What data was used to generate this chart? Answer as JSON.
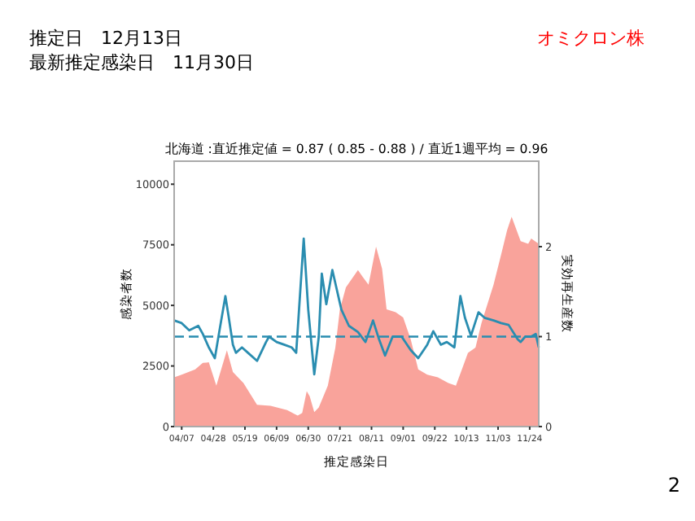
{
  "chart_data": {
    "type": "line",
    "title": "北海道 :直近推定値 = 0.87 ( 0.85 - 0.88 ) / 直近1週平均 = 0.96",
    "xlabel": "推定感染日",
    "ylabel": "感染者数",
    "y2label": "実効再生産数",
    "annotations": [
      "推定日　12月13日",
      "最新推定感染日　11月30日",
      "オミクロン株",
      "2"
    ],
    "xlim": [
      "--04-02",
      "--11-30"
    ],
    "xticks": [
      {
        "value": "--04-07",
        "label": "04/07"
      },
      {
        "value": "--04-28",
        "label": "04/28"
      },
      {
        "value": "--05-19",
        "label": "05/19"
      },
      {
        "value": "--06-09",
        "label": "06/09"
      },
      {
        "value": "--06-30",
        "label": "06/30"
      },
      {
        "value": "--07-21",
        "label": "07/21"
      },
      {
        "value": "--08-11",
        "label": "08/11"
      },
      {
        "value": "--09-01",
        "label": "09/01"
      },
      {
        "value": "--09-22",
        "label": "09/22"
      },
      {
        "value": "--10-13",
        "label": "10/13"
      },
      {
        "value": "--11-03",
        "label": "11/03"
      },
      {
        "value": "--11-24",
        "label": "11/24"
      }
    ],
    "ylim": [
      0,
      10950
    ],
    "yticks": [
      0,
      2500,
      5000,
      7500,
      10000
    ],
    "y2lim": [
      0,
      2.95
    ],
    "y2ticks": [
      0,
      1,
      2
    ],
    "grid": false,
    "ref_lines": [
      {
        "axis": "y2",
        "value": 1,
        "color": "#2a8db0",
        "line_style": "dashed"
      }
    ],
    "series": [
      {
        "type": "area",
        "color": "#f9a39b",
        "x": [
          "--04-02",
          "--04-07",
          "--04-16",
          "--04-21",
          "--04-25",
          "--04-30",
          "--05-07",
          "--05-11",
          "--05-18",
          "--05-27",
          "--06-05",
          "--06-16",
          "--06-23",
          "--06-26",
          "--06-29",
          "--07-01",
          "--07-04",
          "--07-07",
          "--07-13",
          "--07-18",
          "--07-21",
          "--07-25",
          "--08-02",
          "--08-05",
          "--08-09",
          "--08-14",
          "--08-18",
          "--08-21",
          "--08-27",
          "--09-01",
          "--09-06",
          "--09-11",
          "--09-17",
          "--09-24",
          "--10-01",
          "--10-06",
          "--10-10",
          "--10-14",
          "--10-19",
          "--10-23",
          "--10-31",
          "--11-05",
          "--11-09",
          "--11-12",
          "--11-18",
          "--11-23",
          "--11-25",
          "--11-30"
        ],
        "values": [
          2030,
          2140,
          2360,
          2630,
          2650,
          1690,
          3150,
          2250,
          1800,
          900,
          860,
          680,
          450,
          560,
          1460,
          1240,
          600,
          790,
          1690,
          3260,
          4840,
          5740,
          6460,
          6190,
          5850,
          7420,
          6520,
          4840,
          4720,
          4500,
          3600,
          2360,
          2140,
          2030,
          1800,
          1690,
          2360,
          3040,
          3260,
          4270,
          5850,
          7090,
          8100,
          8660,
          7650,
          7540,
          7760,
          7540
        ]
      },
      {
        "axis": "y2",
        "color": "#2a8db0",
        "x": [
          "--04-02",
          "--04-07",
          "--04-12",
          "--04-18",
          "--04-21",
          "--04-25",
          "--04-29",
          "--05-02",
          "--05-06",
          "--05-08",
          "--05-11",
          "--05-13",
          "--05-17",
          "--05-21",
          "--05-27",
          "--06-02",
          "--06-04",
          "--06-09",
          "--06-14",
          "--06-19",
          "--06-22",
          "--06-27",
          "--06-30",
          "--07-04",
          "--07-07",
          "--07-09",
          "--07-12",
          "--07-16",
          "--07-22",
          "--07-27",
          "--08-02",
          "--08-07",
          "--08-12",
          "--08-16",
          "--08-20",
          "--08-25",
          "--08-31",
          "--09-06",
          "--09-11",
          "--09-17",
          "--09-21",
          "--09-26",
          "--09-30",
          "--10-05",
          "--10-09",
          "--10-12",
          "--10-16",
          "--10-21",
          "--10-25",
          "--10-31",
          "--11-05",
          "--11-10",
          "--11-16",
          "--11-18",
          "--11-21",
          "--11-25",
          "--11-28",
          "--11-30"
        ],
        "values": [
          1.18,
          1.15,
          1.07,
          1.12,
          1.03,
          0.88,
          0.76,
          1.06,
          1.45,
          1.24,
          0.91,
          0.82,
          0.88,
          0.82,
          0.73,
          0.94,
          1.0,
          0.94,
          0.91,
          0.88,
          0.82,
          2.09,
          1.3,
          0.58,
          1.0,
          1.7,
          1.36,
          1.74,
          1.3,
          1.12,
          1.05,
          0.94,
          1.18,
          0.97,
          0.79,
          1.0,
          1.0,
          0.85,
          0.76,
          0.91,
          1.06,
          0.91,
          0.94,
          0.88,
          1.45,
          1.21,
          1.01,
          1.27,
          1.21,
          1.18,
          1.15,
          1.13,
          0.97,
          0.94,
          1.0,
          1.0,
          1.03,
          0.88
        ]
      }
    ]
  }
}
